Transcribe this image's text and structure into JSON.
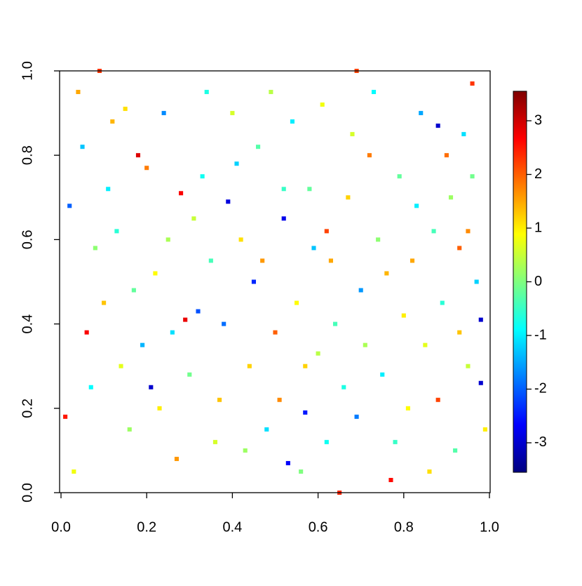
{
  "chart_data": {
    "type": "heatmap",
    "x": [
      0.18,
      0.28,
      0.29,
      0.06,
      0.62,
      0.69,
      0.96,
      0.88,
      0.39,
      0.21,
      0.57,
      0.52,
      0.98,
      0.98,
      0.53,
      0.77,
      0.65,
      0.88,
      0.01,
      0.09,
      0.2,
      0.45,
      0.32,
      0.95,
      0.93,
      0.02,
      0.05,
      0.12,
      0.15,
      0.25,
      0.35,
      0.4,
      0.44,
      0.48,
      0.5,
      0.55,
      0.58,
      0.6,
      0.63,
      0.66,
      0.7,
      0.72,
      0.74,
      0.78,
      0.8,
      0.83,
      0.85,
      0.9,
      0.92,
      0.95,
      0.97,
      0.03,
      0.07,
      0.1,
      0.13,
      0.16,
      0.19,
      0.22,
      0.24,
      0.27,
      0.3,
      0.33,
      0.36,
      0.38,
      0.42,
      0.46,
      0.49,
      0.51,
      0.54,
      0.56,
      0.59,
      0.61,
      0.64,
      0.67,
      0.69,
      0.71,
      0.73,
      0.76,
      0.79,
      0.81,
      0.84,
      0.86,
      0.89,
      0.91,
      0.94,
      0.99,
      0.04,
      0.08,
      0.11,
      0.14,
      0.17,
      0.23,
      0.26,
      0.31,
      0.34,
      0.37,
      0.41,
      0.43,
      0.47,
      0.52,
      0.57,
      0.62,
      0.68,
      0.75,
      0.82,
      0.87,
      0.93,
      0.96
    ],
    "y": [
      0.8,
      0.71,
      0.41,
      0.38,
      0.62,
      1.0,
      0.97,
      0.87,
      0.69,
      0.25,
      0.19,
      0.65,
      0.41,
      0.26,
      0.07,
      0.03,
      0.0,
      0.22,
      0.18,
      1.0,
      0.77,
      0.5,
      0.43,
      0.62,
      0.58,
      0.68,
      0.82,
      0.88,
      0.91,
      0.6,
      0.55,
      0.9,
      0.3,
      0.15,
      0.38,
      0.45,
      0.72,
      0.33,
      0.55,
      0.25,
      0.48,
      0.8,
      0.6,
      0.12,
      0.42,
      0.68,
      0.35,
      0.8,
      0.1,
      0.3,
      0.5,
      0.05,
      0.25,
      0.45,
      0.62,
      0.15,
      0.35,
      0.52,
      0.9,
      0.08,
      0.28,
      0.75,
      0.12,
      0.4,
      0.6,
      0.82,
      0.95,
      0.22,
      0.88,
      0.05,
      0.58,
      0.92,
      0.4,
      0.7,
      0.18,
      0.35,
      0.95,
      0.52,
      0.75,
      0.2,
      0.9,
      0.05,
      0.45,
      0.7,
      0.85,
      0.15,
      0.95,
      0.58,
      0.72,
      0.3,
      0.48,
      0.2,
      0.38,
      0.65,
      0.95,
      0.22,
      0.78,
      0.1,
      0.55,
      0.72,
      0.3,
      0.12,
      0.85,
      0.28,
      0.55,
      0.62,
      0.38,
      0.75
    ],
    "values": [
      2.9,
      2.7,
      2.8,
      2.7,
      2.2,
      2.2,
      2.3,
      -3.0,
      -2.9,
      -3.0,
      -2.5,
      -2.8,
      -3.0,
      -3.0,
      -2.7,
      2.6,
      2.4,
      2.2,
      2.5,
      2.3,
      1.8,
      -2.4,
      -2.1,
      1.7,
      2.0,
      -2.0,
      -1.3,
      1.4,
      1.1,
      0.3,
      -0.4,
      0.6,
      1.2,
      -1.1,
      2.0,
      0.9,
      -0.2,
      0.4,
      1.5,
      -0.7,
      -1.6,
      1.8,
      0.1,
      -0.5,
      1.0,
      -1.0,
      0.7,
      1.9,
      -0.3,
      0.5,
      -1.2,
      0.8,
      -0.9,
      1.3,
      -0.6,
      0.2,
      -1.4,
      0.9,
      -1.7,
      1.6,
      -0.1,
      -0.8,
      0.6,
      -1.9,
      1.1,
      -0.3,
      0.4,
      1.7,
      -1.0,
      0.0,
      -1.3,
      0.8,
      -0.4,
      1.2,
      -1.8,
      0.3,
      -0.9,
      1.4,
      -0.2,
      0.9,
      -1.5,
      1.1,
      -0.6,
      0.2,
      -1.1,
      1.0,
      1.5,
      0.1,
      -1.0,
      0.7,
      -0.2,
      1.0,
      -1.1,
      0.5,
      -0.7,
      1.3,
      -1.2,
      0.2,
      1.6,
      -0.5,
      1.2,
      -0.8,
      0.6,
      -1.0,
      1.5,
      -0.4,
      1.3,
      -0.1
    ],
    "xlim": [
      0,
      1
    ],
    "ylim": [
      0,
      1
    ],
    "xticks": [
      {
        "value": 0,
        "label": "0.0"
      },
      0.2,
      0.4,
      0.6,
      0.8,
      {
        "value": 1,
        "label": "1.0"
      }
    ],
    "yticks": [
      {
        "value": 0,
        "label": "0.0"
      },
      0.2,
      0.4,
      0.6,
      0.8,
      {
        "value": 1,
        "label": "1.0"
      }
    ],
    "zlim": [
      -3.55,
      3.55
    ],
    "zticks": [
      -3,
      -2,
      -1,
      0,
      1,
      2,
      3
    ],
    "colormap": [
      "#00007F",
      "#0000FF",
      "#007FFF",
      "#00FFFF",
      "#7FFF7F",
      "#FFFF00",
      "#FF7F00",
      "#FF0000",
      "#7F0000"
    ]
  }
}
